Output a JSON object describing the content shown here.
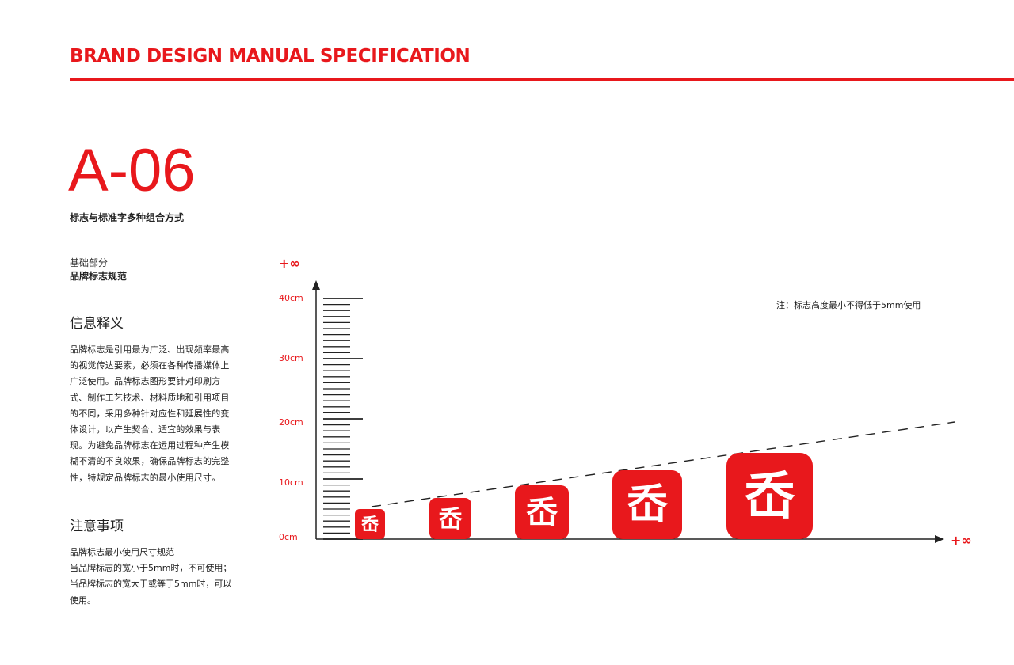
{
  "header": {
    "title": "BRAND DESIGN MANUAL SPECIFICATION",
    "accent_color": "#e8181c"
  },
  "section": {
    "code": "A-06",
    "subtitle": "标志与标准字多种组合方式"
  },
  "category": {
    "line1": "基础部分",
    "line2": "品牌标志规范"
  },
  "info": {
    "heading": "信息释义",
    "body": "品牌标志是引用最为广泛、出现频率最高的视觉传达要素，必须在各种传播媒体上广泛使用。品牌标志图形要针对印刷方式、制作工艺技术、材料质地和引用项目的不同，采用多种针对应性和延展性的变体设计，以产生契合、适宜的效果与表现。为避免品牌标志在运用过程种产生模糊不清的不良效果，确保品牌标志的完整性，特规定品牌标志的最小使用尺寸。"
  },
  "notes": {
    "heading": "注意事项",
    "lines": [
      "品牌标志最小使用尺寸规范",
      "当品牌标志的宽小于5mm时，不可使用；",
      "当品牌标志的宽大于或等于5mm时，可以使用。"
    ]
  },
  "diagram": {
    "y_infinity_label": "+∞",
    "x_infinity_label": "+∞",
    "y_ticks": [
      "0cm",
      "10cm",
      "20cm",
      "30cm",
      "40cm"
    ],
    "note": "注：标志高度最小不得低于5mm使用",
    "logo_glyph": "岙",
    "logo_color": "#e8181c",
    "logo_sizes": [
      5,
      7,
      9,
      11.5,
      14.5
    ]
  }
}
